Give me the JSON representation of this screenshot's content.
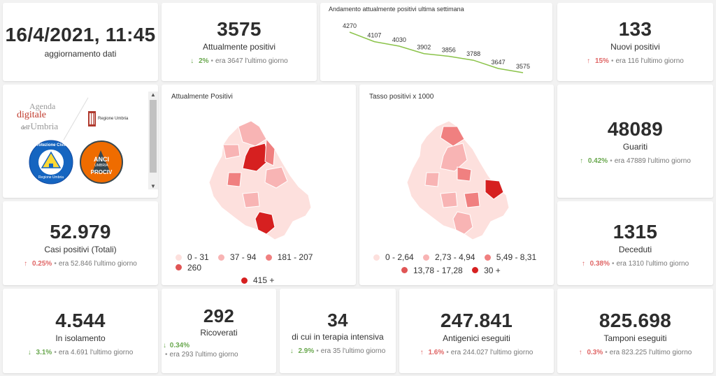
{
  "update": {
    "datetime": "16/4/2021, 11:45",
    "label": "aggiornamento dati"
  },
  "attualmente_positivi": {
    "value": "3575",
    "label": "Attualmente positivi",
    "pct": "2%",
    "prev": "era 3647",
    "suffix": "l'ultimo giorno",
    "arrow": "↓"
  },
  "trend_chart": {
    "title": "Andamento attualmente positivi ultima settimana",
    "chart_data": {
      "type": "line",
      "values": [
        4270,
        4107,
        4030,
        3902,
        3856,
        3788,
        3647,
        3575
      ],
      "color": "#8bc34a"
    }
  },
  "nuovi_positivi": {
    "value": "133",
    "label": "Nuovi positivi",
    "pct": "15%",
    "prev": "era 116",
    "suffix": "l'ultimo giorno",
    "arrow": "↑"
  },
  "logos": {
    "agenda_line1": "Agenda",
    "agenda_line2": "digitale",
    "agenda_line3a": "dell'",
    "agenda_line3b": "Umbria",
    "regione": "Regione Umbria",
    "protezione": "Protezione Civile",
    "protezione_sub": "Regione Umbria",
    "anci": "ANCI",
    "anci_sub": "UMBRIA",
    "prociv": "PROCIV"
  },
  "map1": {
    "title": "Attualmente Positivi",
    "legend": [
      {
        "label": "0 - 31",
        "color": "#fde0dd"
      },
      {
        "label": "37 - 94",
        "color": "#f8b4b4"
      },
      {
        "label": "181 - 207",
        "color": "#f08080"
      },
      {
        "label": "260",
        "color": "#e05555"
      },
      {
        "label": "415 +",
        "color": "#d62020"
      }
    ]
  },
  "map2": {
    "title": "Tasso positivi x 1000",
    "legend": [
      {
        "label": "0 - 2,64",
        "color": "#fde0dd"
      },
      {
        "label": "2,73 - 4,94",
        "color": "#f8b4b4"
      },
      {
        "label": "5,49 - 8,31",
        "color": "#f08080"
      },
      {
        "label": "13,78 - 17,28",
        "color": "#e05555"
      },
      {
        "label": "30 +",
        "color": "#d62020"
      }
    ]
  },
  "guariti": {
    "value": "48089",
    "label": "Guariti",
    "pct": "0.42%",
    "prev": "era 47889",
    "suffix": "l'ultimo giorno",
    "arrow": "↑"
  },
  "casi_totali": {
    "value": "52.979",
    "label": "Casi positivi (Totali)",
    "pct": "0.25%",
    "prev": "era 52.846",
    "suffix": "l'ultimo giorno",
    "arrow": "↑"
  },
  "deceduti": {
    "value": "1315",
    "label": "Deceduti",
    "pct": "0.38%",
    "prev": "era 1310",
    "suffix": "l'ultimo giorno",
    "arrow": "↑"
  },
  "isolamento": {
    "value": "4.544",
    "label": "In isolamento",
    "pct": "3.1%",
    "prev": "era 4.691",
    "suffix": "l'ultimo giorno",
    "arrow": "↓"
  },
  "ricoverati": {
    "value": "292",
    "label": "Ricoverati",
    "pct": "0.34%",
    "prev": "era 293",
    "suffix": "l'ultimo giorno",
    "arrow": "↓"
  },
  "terapia_intensiva": {
    "value": "34",
    "label": "di cui in terapia intensiva",
    "pct": "2.9%",
    "prev": "era 35",
    "suffix": "l'ultimo giorno",
    "arrow": "↓"
  },
  "antigenici": {
    "value": "247.841",
    "label": "Antigenici eseguiti",
    "pct": "1.6%",
    "prev": "era 244.027",
    "suffix": "l'ultimo giorno",
    "arrow": "↑"
  },
  "tamponi": {
    "value": "825.698",
    "label": "Tamponi eseguiti",
    "pct": "0.3%",
    "prev": "era 823.225",
    "suffix": "l'ultimo giorno",
    "arrow": "↑"
  },
  "scrollbar": {
    "up": "▲",
    "down": "▼"
  }
}
